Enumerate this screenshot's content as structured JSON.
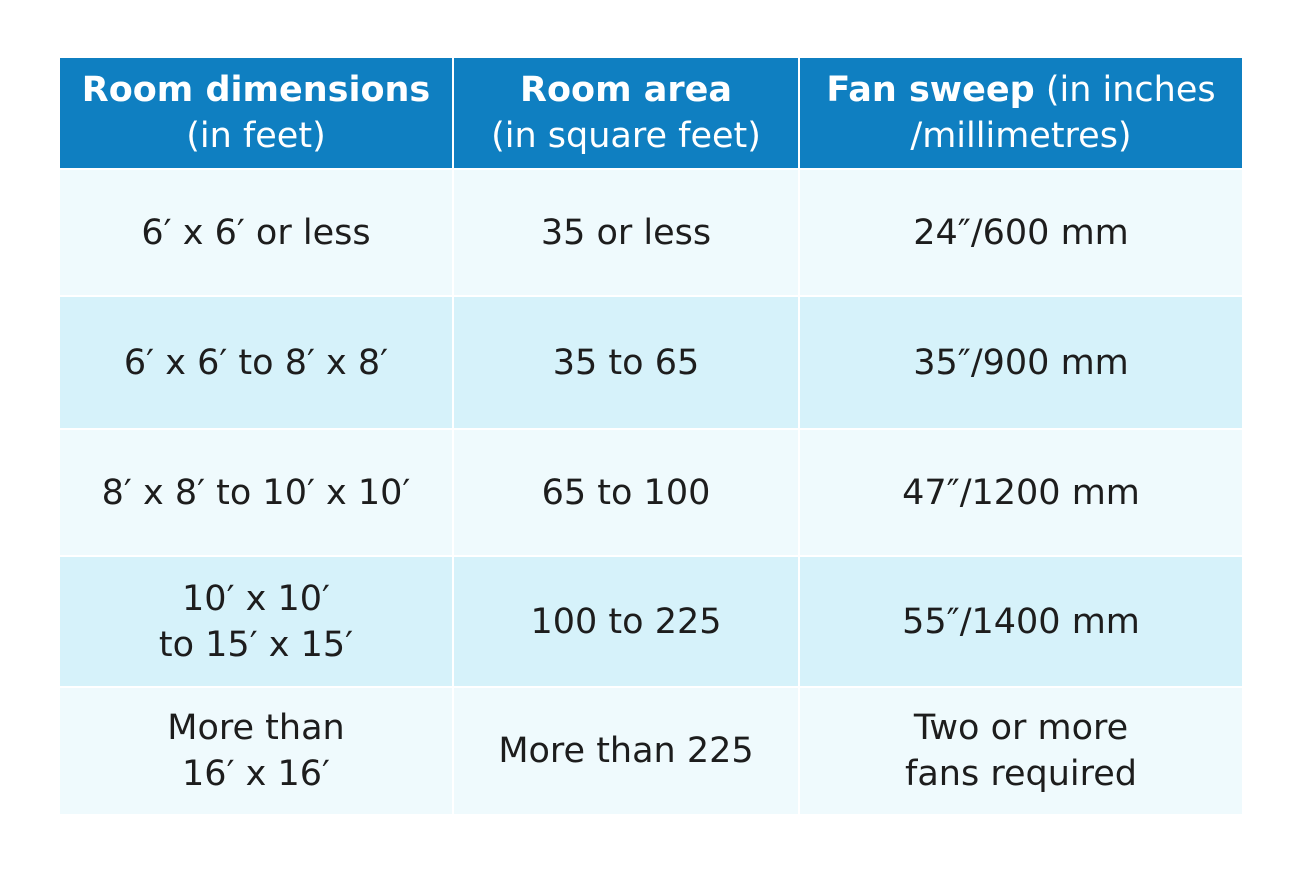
{
  "table": {
    "header": [
      {
        "title": "Room dimensions",
        "note": [
          "(in feet)"
        ]
      },
      {
        "title": "Room area",
        "note": [
          "(in square feet)"
        ]
      },
      {
        "title": "Fan sweep",
        "note": [
          "(in inches",
          "/millimetres)"
        ]
      }
    ],
    "rows": [
      [
        [
          "6′ x 6′ or less"
        ],
        [
          "35 or less"
        ],
        [
          "24″/600 mm"
        ]
      ],
      [
        [
          "6′ x 6′ to 8′ x 8′"
        ],
        [
          "35 to 65"
        ],
        [
          "35″/900 mm"
        ]
      ],
      [
        [
          "8′ x 8′ to 10′ x 10′"
        ],
        [
          "65 to 100"
        ],
        [
          "47″/1200 mm"
        ]
      ],
      [
        [
          "10′ x 10′",
          "to 15′ x 15′"
        ],
        [
          "100 to 225"
        ],
        [
          "55″/1400 mm"
        ]
      ],
      [
        [
          "More than",
          "16′ x 16′"
        ],
        [
          "More than 225"
        ],
        [
          "Two or more",
          "fans required"
        ]
      ]
    ]
  }
}
